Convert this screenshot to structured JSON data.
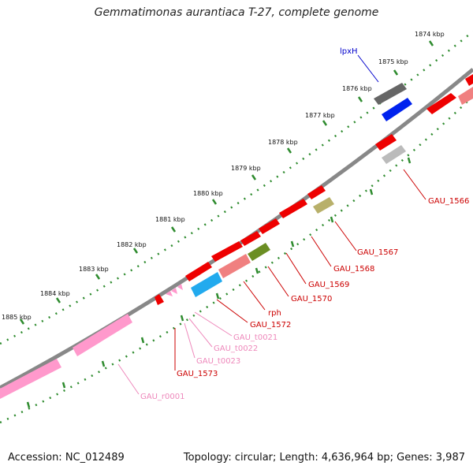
{
  "title": "Gemmatimonas aurantiaca T-27, complete genome",
  "footer": {
    "accession": "Accession: NC_012489",
    "topology": "Topology: circular; Length: 4,636,964 bp; Genes: 3,987"
  },
  "scale_labels": [
    "1874 kbp",
    "1875 kbp",
    "1876 kbp",
    "1877 kbp",
    "1878 kbp",
    "1879 kbp",
    "1880 kbp",
    "1881 kbp",
    "1882 kbp",
    "1883 kbp",
    "1884 kbp",
    "1885 kbp"
  ],
  "gene_labels": [
    {
      "text": "lpxH",
      "color": "#0000cc"
    },
    {
      "text": "GAU_1566",
      "color": "#cc0000"
    },
    {
      "text": "GAU_1567",
      "color": "#cc0000"
    },
    {
      "text": "GAU_1568",
      "color": "#cc0000"
    },
    {
      "text": "GAU_1569",
      "color": "#cc0000"
    },
    {
      "text": "GAU_1570",
      "color": "#cc0000"
    },
    {
      "text": "rph",
      "color": "#cc0000"
    },
    {
      "text": "GAU_1572",
      "color": "#cc0000"
    },
    {
      "text": "GAU_t0021",
      "color": "#ee88bb"
    },
    {
      "text": "GAU_t0022",
      "color": "#ee88bb"
    },
    {
      "text": "GAU_t0023",
      "color": "#ee88bb"
    },
    {
      "text": "GAU_1573",
      "color": "#cc0000"
    },
    {
      "text": "GAU_r0001",
      "color": "#ee88bb"
    }
  ],
  "colors": {
    "backbone": "#808080",
    "ticks": "#2e8b2e",
    "red_gene": "#ee0000",
    "pink_gene": "#ff99cc",
    "blue_gene": "#0022ee",
    "grey_gene": "#666666",
    "light_grey_gene": "#bbbbbb",
    "salmon_gene": "#f08080",
    "olive_gene": "#6b8e23",
    "khaki_gene": "#b8b06a",
    "cyan_gene": "#22aaee"
  }
}
